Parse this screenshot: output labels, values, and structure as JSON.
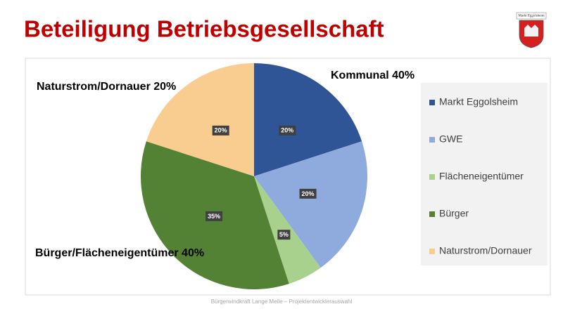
{
  "title": "Beteiligung Betriebsgesellschaft",
  "logo_text": "Markt Eggolsheim",
  "footer": "Bürgerwindkraft Lange Meile – Projektentwicklerauswahl",
  "chart_data": {
    "type": "pie",
    "categories": [
      "Markt Eggolsheim",
      "GWE",
      "Flächeneigentümer",
      "Bürger",
      "Naturstrom/Dornauer"
    ],
    "values": [
      20,
      20,
      5,
      35,
      20
    ],
    "value_labels": [
      "20%",
      "20%",
      "5%",
      "35%",
      "20%"
    ],
    "colors": [
      "#2f5597",
      "#8faadc",
      "#a9d18e",
      "#548235",
      "#f9cc8f"
    ],
    "legend": "right",
    "annotations": [
      "Kommunal 40%",
      "Naturstrom/Dornauer 20%",
      "Bürger/Flächeneigentümer 40%"
    ]
  }
}
